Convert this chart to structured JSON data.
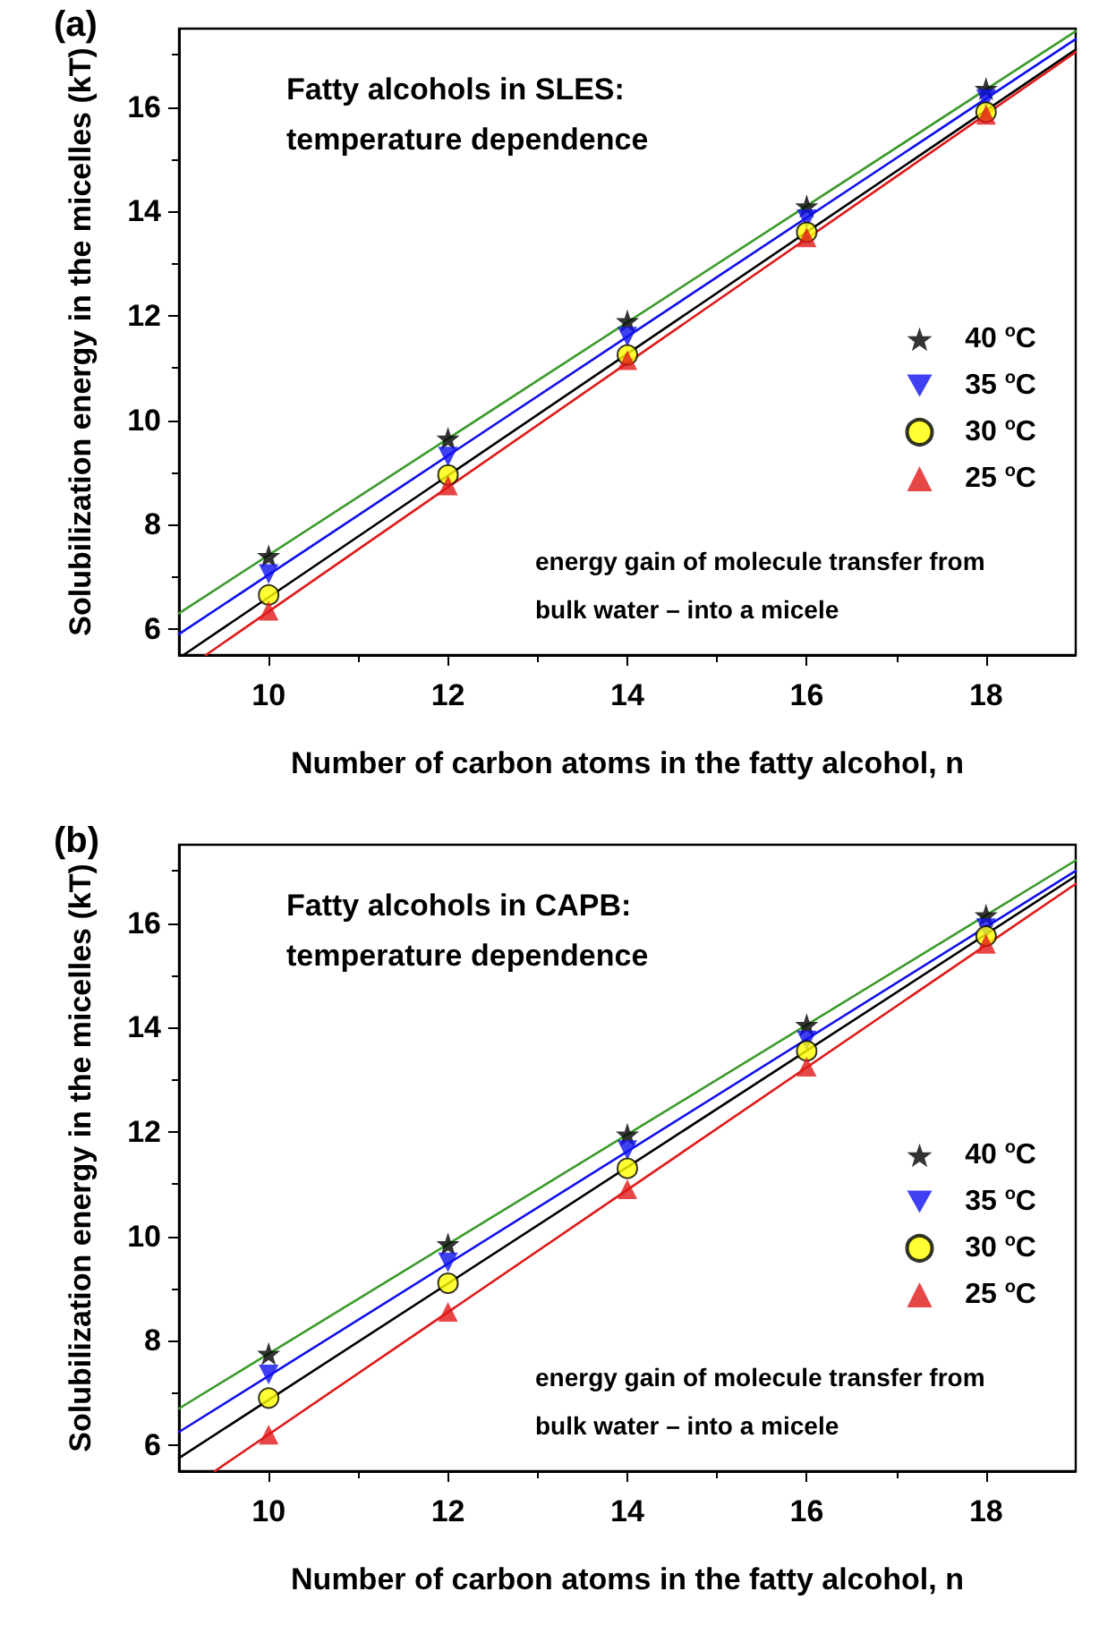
{
  "chart_data": [
    {
      "type": "scatter",
      "title": "Fatty alcohols in SLES: temperature dependence",
      "xlabel": "Number of carbon atoms in the fatty alcohol, n",
      "ylabel": "Solubilization energy in the micelles (kT)",
      "annotations": [
        "(a)",
        "energy gain of molecule transfer from bulk water – into a micele"
      ],
      "xlim": [
        9,
        19
      ],
      "ylim": [
        5.5,
        17.5
      ],
      "xticks": [
        10,
        12,
        14,
        16,
        18
      ],
      "yticks": [
        6,
        8,
        10,
        12,
        14,
        16
      ],
      "grid": false,
      "legend": "right",
      "x": [
        10,
        12,
        14,
        16,
        18
      ],
      "series": [
        {
          "name": "40 $^{o}$C",
          "color": "#000000",
          "marker": "star",
          "values": [
            7.4,
            9.65,
            11.9,
            14.1,
            16.35
          ]
        },
        {
          "name": "35 $^{o}$C",
          "color": "#1010f0",
          "marker": "triangle-down",
          "values": [
            7.05,
            9.3,
            11.6,
            13.85,
            16.15
          ]
        },
        {
          "name": "30 $^{o}$C",
          "color": "#ffff00",
          "marker": "circle",
          "values": [
            6.65,
            8.95,
            11.25,
            13.6,
            15.9
          ]
        },
        {
          "name": "25 $^{o}$C",
          "color": "#e01818",
          "marker": "triangle",
          "values": [
            6.35,
            8.75,
            11.15,
            13.5,
            15.85
          ]
        },
        {
          "type": "line",
          "color": "#3a9a2a",
          "marker": "none",
          "x": [
            9,
            19
          ],
          "values": [
            6.3,
            17.45
          ]
        },
        {
          "type": "line",
          "color": "#1010f0",
          "marker": "none",
          "x": [
            9,
            19
          ],
          "values": [
            5.9,
            17.3
          ]
        },
        {
          "type": "line",
          "color": "#000000",
          "marker": "none",
          "x": [
            9.05,
            19
          ],
          "values": [
            5.5,
            17.1
          ]
        },
        {
          "type": "line",
          "color": "#e01818",
          "marker": "none",
          "x": [
            9.3,
            19
          ],
          "values": [
            5.5,
            17.05
          ]
        }
      ]
    },
    {
      "type": "scatter",
      "title": "Fatty alcohols in CAPB: temperature dependence",
      "xlabel": "Number of carbon atoms in the fatty alcohol, n",
      "ylabel": "Solubilization energy in the micelles (kT)",
      "annotations": [
        "(b)",
        "energy gain of molecule transfer from bulk water – into a micele"
      ],
      "xlim": [
        9,
        19
      ],
      "ylim": [
        5.5,
        17.5
      ],
      "xticks": [
        10,
        12,
        14,
        16,
        18
      ],
      "yticks": [
        6,
        8,
        10,
        12,
        14,
        16
      ],
      "grid": false,
      "legend": "right",
      "x": [
        10,
        12,
        14,
        16,
        18
      ],
      "series": [
        {
          "name": "40 $^{o}$C",
          "color": "#000000",
          "marker": "star",
          "values": [
            7.75,
            9.85,
            11.95,
            14.05,
            16.15
          ]
        },
        {
          "name": "35 $^{o}$C",
          "color": "#1010f0",
          "marker": "triangle-down",
          "values": [
            7.35,
            9.5,
            11.65,
            13.75,
            15.9
          ]
        },
        {
          "name": "30 $^{o}$C",
          "color": "#ffff00",
          "marker": "circle",
          "values": [
            6.9,
            9.1,
            11.3,
            13.55,
            15.75
          ]
        },
        {
          "name": "25 $^{o}$C",
          "color": "#e01818",
          "marker": "triangle",
          "values": [
            6.2,
            8.55,
            10.9,
            13.25,
            15.6
          ]
        },
        {
          "type": "line",
          "color": "#3a9a2a",
          "marker": "none",
          "x": [
            9,
            19
          ],
          "values": [
            6.7,
            17.2
          ]
        },
        {
          "type": "line",
          "color": "#1010f0",
          "marker": "none",
          "x": [
            9,
            19
          ],
          "values": [
            6.25,
            17.0
          ]
        },
        {
          "type": "line",
          "color": "#000000",
          "marker": "none",
          "x": [
            9,
            19
          ],
          "values": [
            5.75,
            16.9
          ]
        },
        {
          "type": "line",
          "color": "#e01818",
          "marker": "none",
          "x": [
            9.4,
            19
          ],
          "values": [
            5.5,
            16.75
          ]
        }
      ]
    }
  ]
}
